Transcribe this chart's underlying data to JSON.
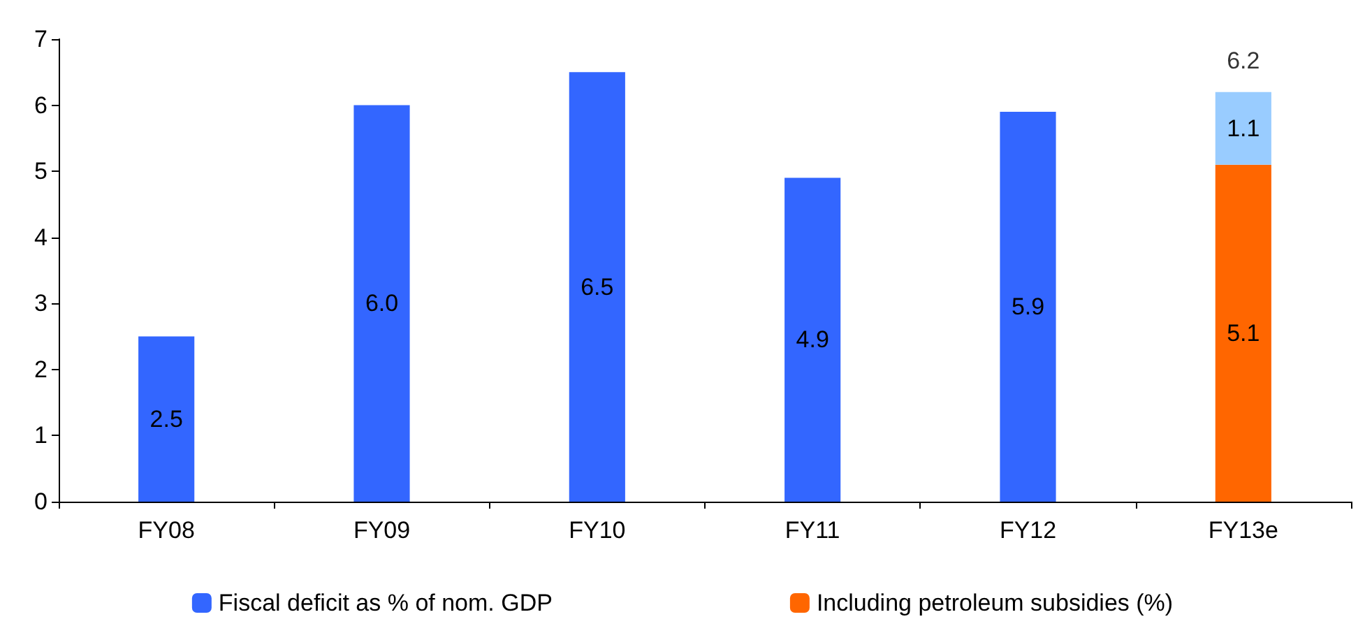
{
  "chart_data": {
    "type": "bar",
    "stacked": true,
    "categories": [
      "FY08",
      "FY09",
      "FY10",
      "FY11",
      "FY12",
      "FY13e"
    ],
    "series": [
      {
        "name": "Fiscal deficit as % of nom. GDP",
        "color": "#3366ff",
        "values": [
          2.5,
          6.0,
          6.5,
          4.9,
          5.9,
          null
        ],
        "value_labels": [
          "2.5",
          "6.0",
          "6.5",
          "4.9",
          "5.9",
          null
        ]
      },
      {
        "name": "Including petroleum subsidies (%)",
        "color": "#ff6600",
        "values": [
          null,
          null,
          null,
          null,
          null,
          5.1
        ],
        "value_labels": [
          null,
          null,
          null,
          null,
          null,
          "5.1"
        ]
      },
      {
        "color": "#99ccff",
        "values": [
          null,
          null,
          null,
          null,
          null,
          1.1
        ],
        "value_labels": [
          null,
          null,
          null,
          null,
          null,
          "1.1"
        ]
      }
    ],
    "totals": [
      null,
      null,
      null,
      null,
      null,
      "6.2"
    ],
    "ylim": [
      0,
      7
    ],
    "yticks": [
      0,
      1,
      2,
      3,
      4,
      5,
      6,
      7
    ],
    "grid": false,
    "legend": "bottom"
  }
}
